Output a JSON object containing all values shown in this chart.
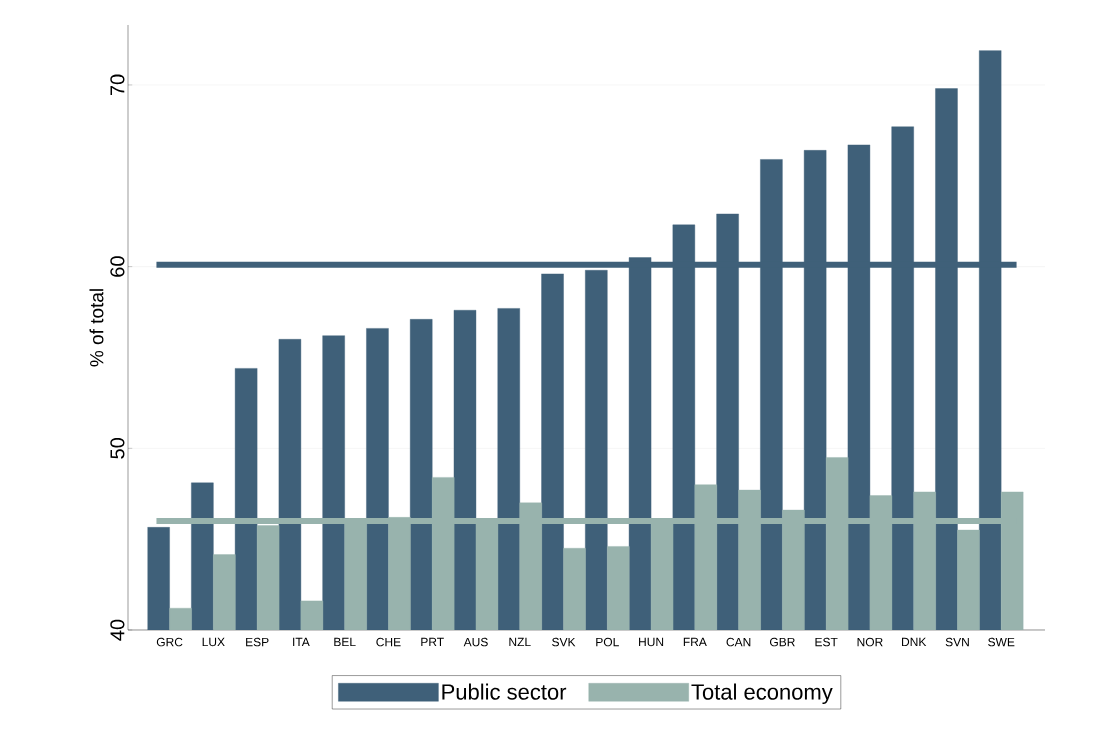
{
  "chart_data": {
    "type": "bar",
    "ylabel": "% of total",
    "categories": [
      "GRC",
      "LUX",
      "ESP",
      "ITA",
      "BEL",
      "CHE",
      "PRT",
      "AUS",
      "NZL",
      "SVK",
      "POL",
      "HUN",
      "FRA",
      "CAN",
      "GBR",
      "EST",
      "NOR",
      "DNK",
      "SVN",
      "SWE"
    ],
    "series": [
      {
        "name": "Public sector",
        "color": "#3f6079",
        "values": [
          45.65,
          48.1,
          54.4,
          56.0,
          56.2,
          56.6,
          57.1,
          57.6,
          57.7,
          59.6,
          59.8,
          60.5,
          62.3,
          62.9,
          65.9,
          66.4,
          66.7,
          67.7,
          69.8,
          71.9
        ]
      },
      {
        "name": "Total economy",
        "color": "#98b3ad",
        "values": [
          41.2,
          44.15,
          45.75,
          41.6,
          46.0,
          46.2,
          48.4,
          45.9,
          47.0,
          44.5,
          44.6,
          46.0,
          48.0,
          47.7,
          46.6,
          49.5,
          47.4,
          47.6,
          45.5,
          47.6
        ]
      }
    ],
    "ylim": [
      40,
      73.3
    ],
    "yticks": [
      40,
      50,
      60,
      70
    ],
    "grid": "y",
    "legend": "bottom",
    "ref_lines": [
      {
        "axis": "y",
        "value": 60.1,
        "color": "#3f6079"
      },
      {
        "axis": "y",
        "value": 46.0,
        "color": "#98b3ad"
      }
    ]
  }
}
